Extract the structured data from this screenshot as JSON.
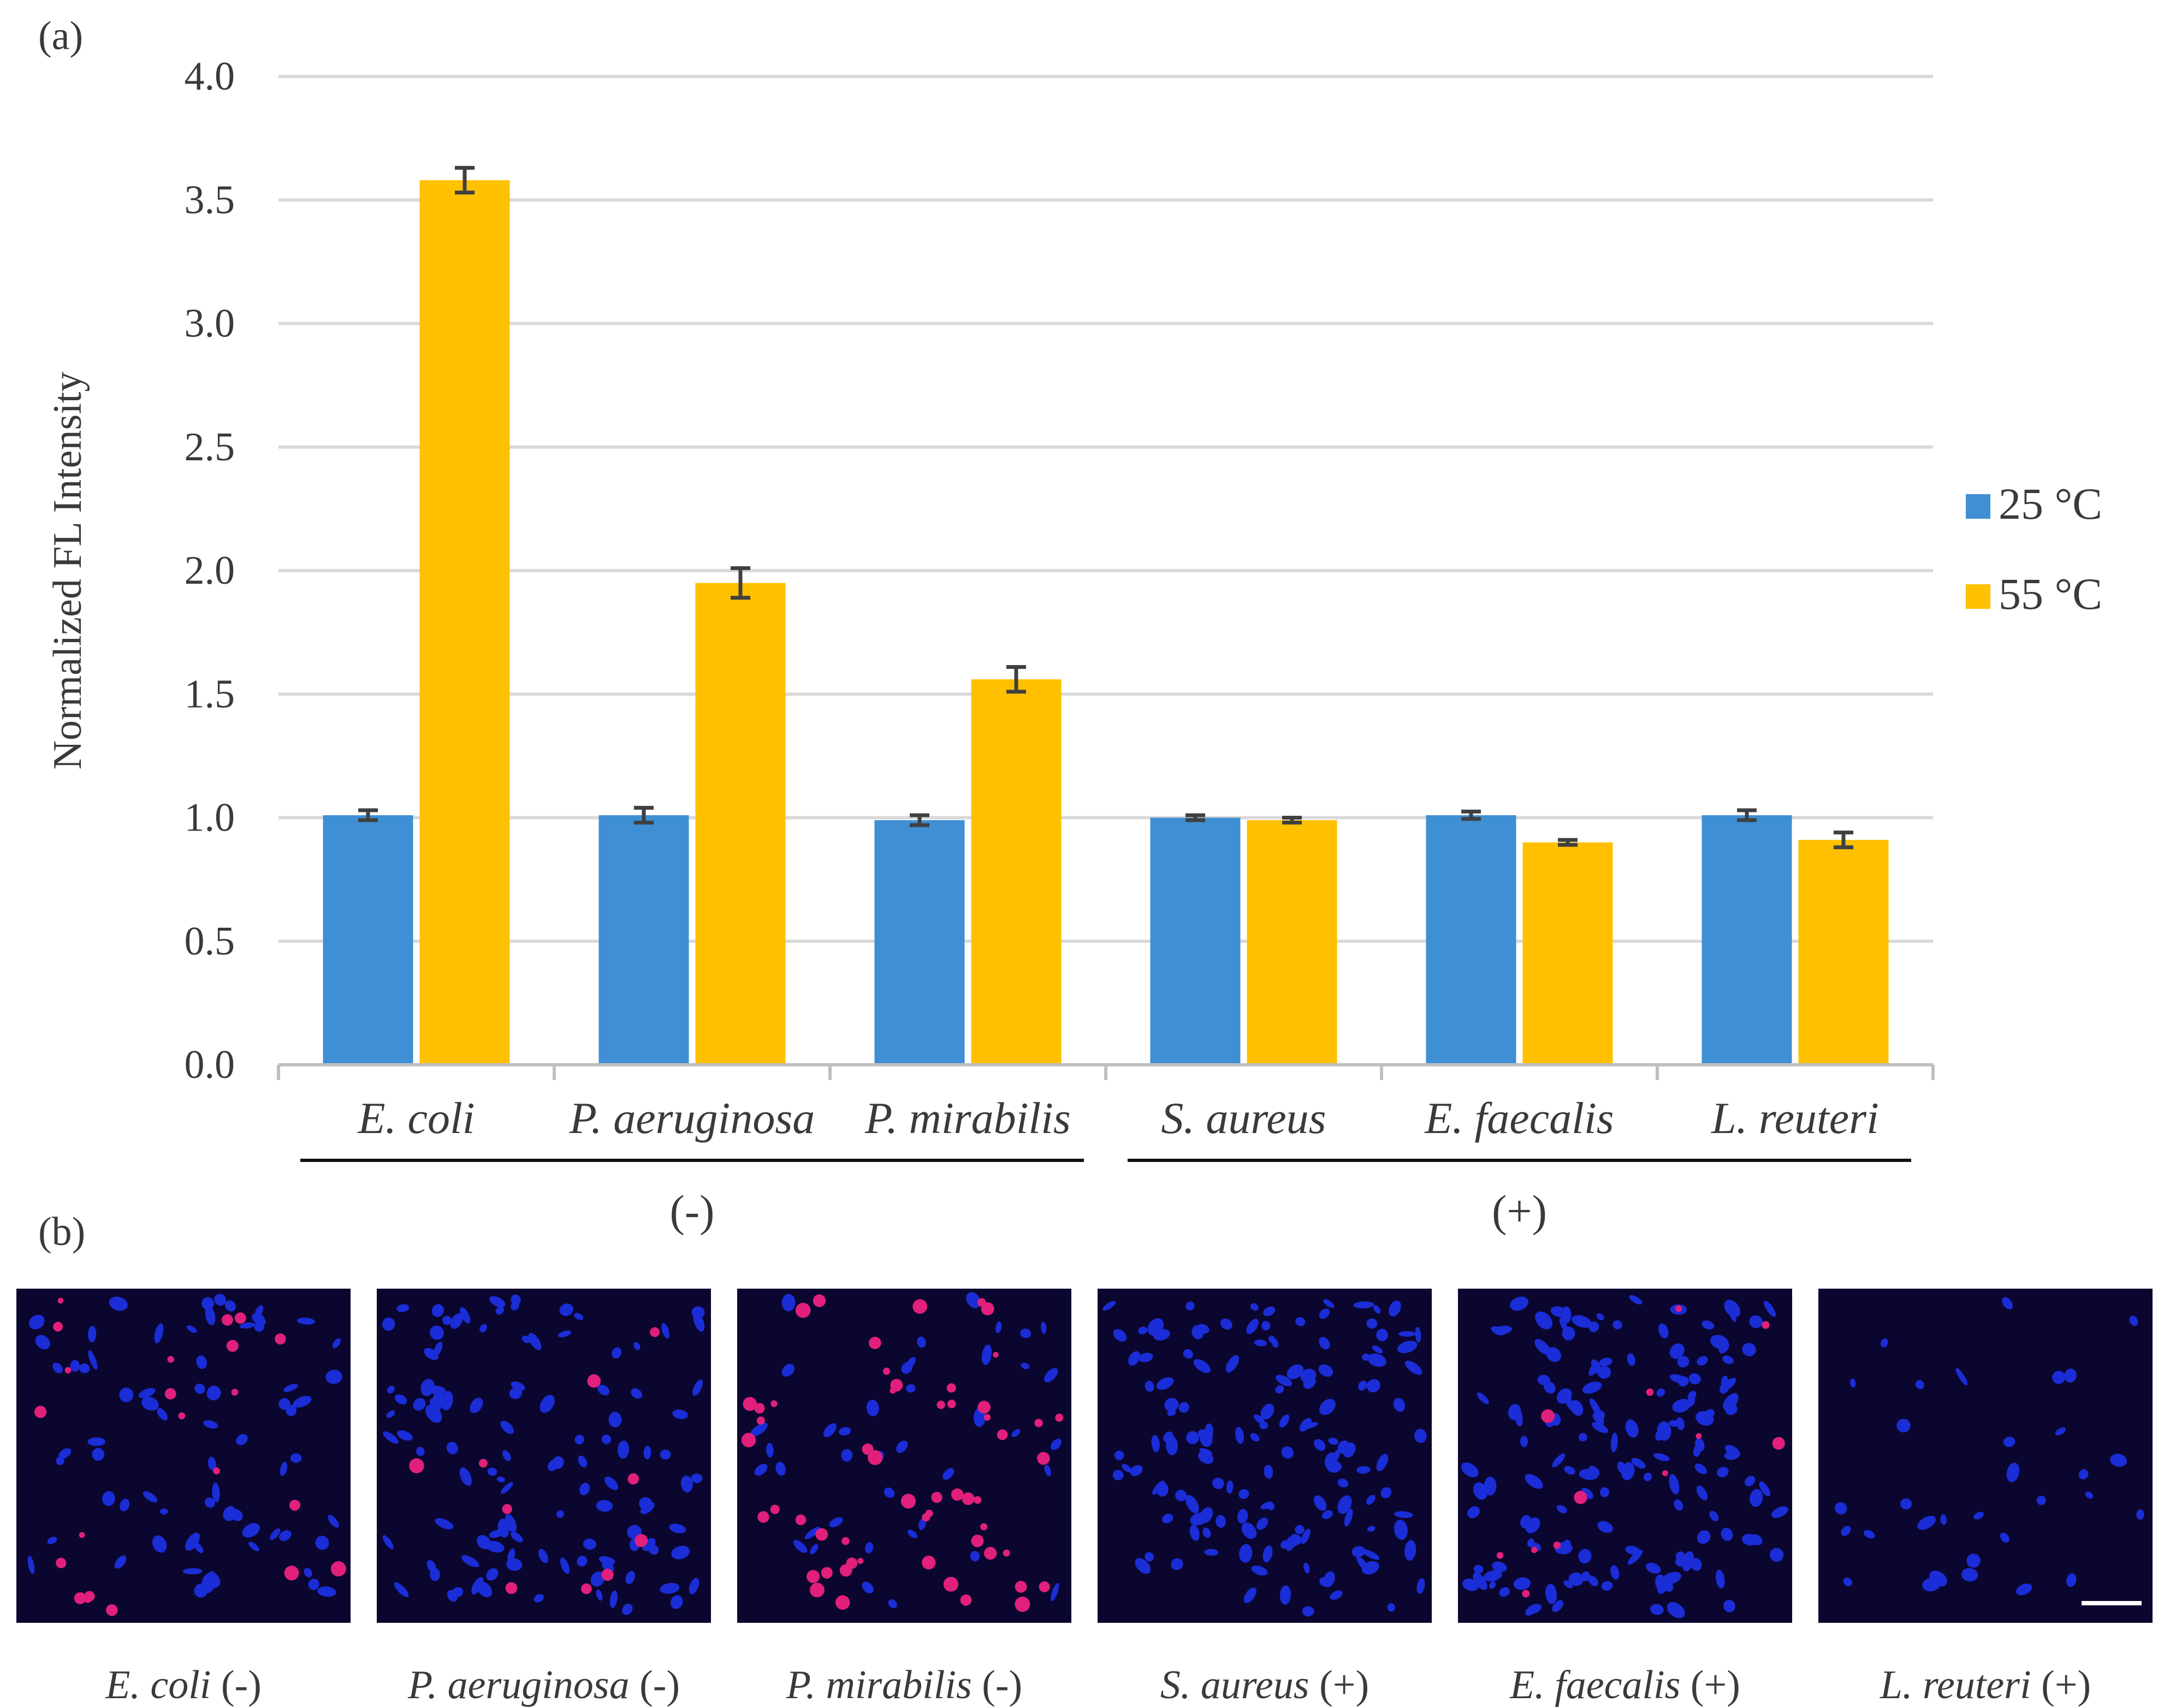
{
  "panel_a_label": "(a)",
  "panel_b_label": "(b)",
  "colors": {
    "series_25": "#3e8fd4",
    "series_55": "#ffc000",
    "micrograph_bg": "#0b0630",
    "cell_blue": "#1a2dd6",
    "cell_red": "#e0207a"
  },
  "chart_data": {
    "type": "bar",
    "title": "",
    "xlabel": "",
    "ylabel": "Normalized FL Intensity",
    "ylim": [
      0,
      4.0
    ],
    "yticks": [
      "0.0",
      "0.5",
      "1.0",
      "1.5",
      "2.0",
      "2.5",
      "3.0",
      "3.5",
      "4.0"
    ],
    "grid": true,
    "legend_position": "right",
    "categories": [
      "E. coli",
      "P. aeruginosa",
      "P. mirabilis",
      "S. aureus",
      "E. faecalis",
      "L. reuteri"
    ],
    "series": [
      {
        "name": "25 °C",
        "values": [
          1.01,
          1.01,
          0.99,
          1.0,
          1.01,
          1.01
        ],
        "errors": [
          0.02,
          0.03,
          0.02,
          0.01,
          0.015,
          0.02
        ]
      },
      {
        "name": "55 °C",
        "values": [
          3.58,
          1.95,
          1.56,
          0.99,
          0.9,
          0.91
        ],
        "errors": [
          0.05,
          0.06,
          0.05,
          0.01,
          0.01,
          0.03
        ]
      }
    ],
    "groups": [
      {
        "label": "(-)",
        "categories": [
          "E. coli",
          "P. aeruginosa",
          "P. mirabilis"
        ]
      },
      {
        "label": "(+)",
        "categories": [
          "S. aureus",
          "E. faecalis",
          "L. reuteri"
        ]
      }
    ]
  },
  "micrographs": [
    {
      "species": "E. coli",
      "sign": "(-)",
      "blue_count": 70,
      "red_count": 22
    },
    {
      "species": "P. aeruginosa",
      "sign": "(-)",
      "blue_count": 110,
      "red_count": 10
    },
    {
      "species": "P. mirabilis",
      "sign": "(-)",
      "blue_count": 40,
      "red_count": 55
    },
    {
      "species": "S. aureus",
      "sign": "(+)",
      "blue_count": 140,
      "red_count": 0
    },
    {
      "species": "E. faecalis",
      "sign": "(+)",
      "blue_count": 150,
      "red_count": 12
    },
    {
      "species": "L. reuteri",
      "sign": "(+)",
      "blue_count": 32,
      "red_count": 0
    }
  ]
}
